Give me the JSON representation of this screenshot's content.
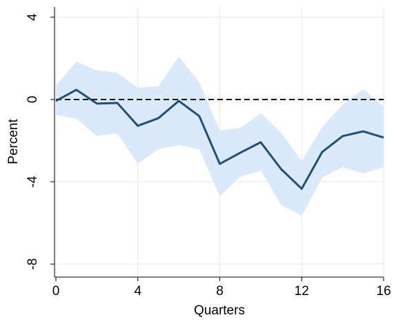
{
  "chart_data": {
    "type": "line",
    "x_label": "Quarters",
    "y_label": "Percent",
    "x": [
      0,
      1,
      2,
      3,
      4,
      5,
      6,
      7,
      8,
      9,
      10,
      11,
      12,
      13,
      14,
      15,
      16
    ],
    "series": [
      {
        "color": "#1f4e79",
        "values": [
          -0.07,
          0.47,
          -0.2,
          -0.17,
          -1.28,
          -0.91,
          -0.07,
          -0.81,
          -3.13,
          -2.59,
          -2.08,
          -3.39,
          -4.34,
          -2.55,
          -1.78,
          -1.55,
          -1.85
        ]
      }
    ],
    "band": {
      "color": "#dbeafa",
      "upper": [
        0.67,
        1.85,
        1.41,
        1.31,
        0.57,
        0.64,
        2.08,
        0.84,
        -1.51,
        -1.38,
        -0.67,
        -1.61,
        -2.99,
        -1.34,
        -0.24,
        0.5,
        -0.34
      ],
      "lower": [
        -0.74,
        -0.94,
        -1.78,
        -1.65,
        -3.13,
        -2.42,
        -2.22,
        -2.42,
        -4.71,
        -3.76,
        -3.46,
        -5.14,
        -5.65,
        -3.8,
        -3.29,
        -3.6,
        -3.29
      ]
    },
    "reference_line": 0,
    "xlim": [
      0,
      16
    ],
    "xticks": [
      0,
      4,
      8,
      12,
      16
    ],
    "ylim": [
      -8.6,
      4.5
    ],
    "yticks": [
      -8,
      -4,
      0,
      4
    ],
    "grid": true
  }
}
